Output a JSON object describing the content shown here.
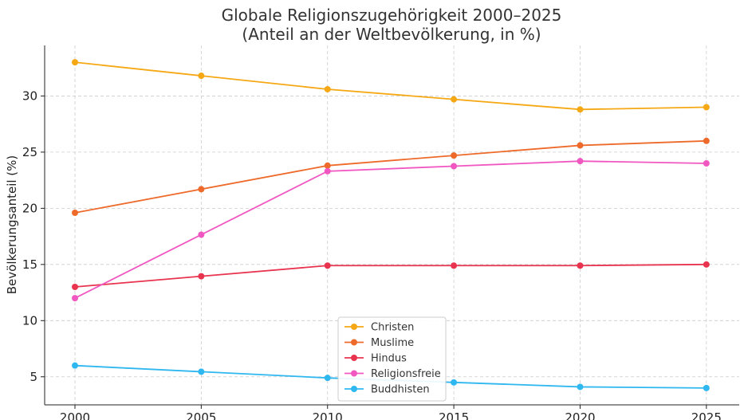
{
  "chart_data": {
    "type": "line",
    "title_line1": "Globale Religionszugehörigkeit 2000–2025",
    "title_line2": "(Anteil an der Weltbevölkerung, in %)",
    "xlabel": "",
    "ylabel": "Bevölkerungsanteil (%)",
    "x": [
      2000,
      2005,
      2010,
      2015,
      2020,
      2025
    ],
    "xticks": [
      "2000",
      "2005",
      "2010",
      "2015",
      "2020",
      "2025"
    ],
    "yticks": [
      5,
      10,
      15,
      20,
      25,
      30
    ],
    "xlim": [
      1998.8,
      2026.3
    ],
    "ylim": [
      2.5,
      34.5
    ],
    "grid": true,
    "legend_position": "bottom-center",
    "series": [
      {
        "name": "Christen",
        "color": "#f5a814",
        "values": [
          33.0,
          31.8,
          30.6,
          29.7,
          28.8,
          29.0
        ]
      },
      {
        "name": "Muslime",
        "color": "#ee6a2a",
        "values": [
          19.6,
          21.7,
          23.8,
          24.7,
          25.6,
          26.0
        ]
      },
      {
        "name": "Hindus",
        "color": "#e8344f",
        "values": [
          13.0,
          13.95,
          14.9,
          14.9,
          14.9,
          15.0
        ]
      },
      {
        "name": "Religionsfreie",
        "color": "#f157c1",
        "values": [
          12.0,
          17.65,
          23.3,
          23.75,
          24.2,
          24.0
        ]
      },
      {
        "name": "Buddhisten",
        "color": "#2fb7f0",
        "values": [
          6.0,
          5.45,
          4.9,
          4.5,
          4.1,
          4.0
        ]
      }
    ]
  }
}
